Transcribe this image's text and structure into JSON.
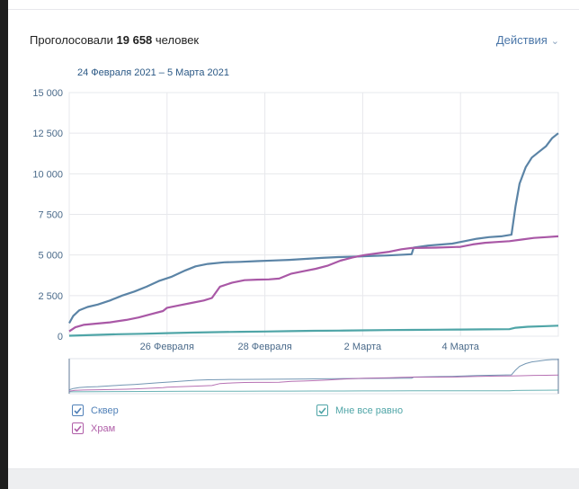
{
  "header": {
    "title_prefix": "Проголосовали",
    "count": "19 658",
    "title_suffix": "человек",
    "actions_label": "Действия"
  },
  "date_range": "24 Февраля 2021 – 5 Марта 2021",
  "legend": [
    {
      "name": "Сквер",
      "color": "#5181b8",
      "checked": true
    },
    {
      "name": "Храм",
      "color": "#b05ea8",
      "checked": true
    },
    {
      "name": "Мне все равно",
      "color": "#4fa5a7",
      "checked": true
    }
  ],
  "colors": {
    "skver": "#5b84a6",
    "hram": "#a958a6",
    "mne_vse_ravno": "#4fa5a7",
    "accent": "#4a76a8"
  },
  "chart_data": {
    "type": "line",
    "title": "",
    "xlabel": "",
    "ylabel": "",
    "x_range": [
      "2021-02-24T00:00",
      "2021-03-06T00:00"
    ],
    "ylim": [
      0,
      15000
    ],
    "y_ticks": [
      0,
      2500,
      5000,
      7500,
      10000,
      12500,
      15000
    ],
    "y_tick_labels": [
      "0",
      "2 500",
      "5 000",
      "7 500",
      "10 000",
      "12 500",
      "15 000"
    ],
    "x_ticks": [
      {
        "at": "2021-02-26T00:00",
        "label": "26 Февраля"
      },
      {
        "at": "2021-02-28T00:00",
        "label": "28 Февраля"
      },
      {
        "at": "2021-03-02T00:00",
        "label": "2 Марта"
      },
      {
        "at": "2021-03-04T00:00",
        "label": "4 Марта"
      }
    ],
    "grid": true,
    "legend_position": "bottom",
    "series": [
      {
        "name": "Сквер",
        "color": "#5b84a6",
        "points": [
          [
            "2021-02-24T00:00",
            800
          ],
          [
            "2021-02-24T02:00",
            1250
          ],
          [
            "2021-02-24T05:00",
            1600
          ],
          [
            "2021-02-24T09:00",
            1800
          ],
          [
            "2021-02-24T14:00",
            1950
          ],
          [
            "2021-02-24T20:00",
            2200
          ],
          [
            "2021-02-25T02:00",
            2500
          ],
          [
            "2021-02-25T08:00",
            2750
          ],
          [
            "2021-02-25T14:00",
            3050
          ],
          [
            "2021-02-25T20:00",
            3400
          ],
          [
            "2021-02-26T02:00",
            3650
          ],
          [
            "2021-02-26T09:00",
            4050
          ],
          [
            "2021-02-26T14:00",
            4300
          ],
          [
            "2021-02-26T20:00",
            4450
          ],
          [
            "2021-02-27T04:00",
            4550
          ],
          [
            "2021-02-27T12:00",
            4580
          ],
          [
            "2021-02-27T20:00",
            4620
          ],
          [
            "2021-02-28T04:00",
            4660
          ],
          [
            "2021-02-28T12:00",
            4700
          ],
          [
            "2021-02-28T20:00",
            4760
          ],
          [
            "2021-03-01T04:00",
            4820
          ],
          [
            "2021-03-01T12:00",
            4870
          ],
          [
            "2021-03-01T20:00",
            4900
          ],
          [
            "2021-03-02T04:00",
            4940
          ],
          [
            "2021-03-02T12:00",
            4970
          ],
          [
            "2021-03-02T20:00",
            5020
          ],
          [
            "2021-03-03T00:00",
            5050
          ],
          [
            "2021-03-03T01:00",
            5450
          ],
          [
            "2021-03-03T08:00",
            5580
          ],
          [
            "2021-03-03T14:00",
            5640
          ],
          [
            "2021-03-03T20:00",
            5700
          ],
          [
            "2021-03-04T02:00",
            5850
          ],
          [
            "2021-03-04T08:00",
            6000
          ],
          [
            "2021-03-04T14:00",
            6100
          ],
          [
            "2021-03-04T20:00",
            6150
          ],
          [
            "2021-03-05T01:00",
            6250
          ],
          [
            "2021-03-05T03:00",
            8000
          ],
          [
            "2021-03-05T05:00",
            9400
          ],
          [
            "2021-03-05T08:00",
            10400
          ],
          [
            "2021-03-05T11:00",
            11000
          ],
          [
            "2021-03-05T14:00",
            11300
          ],
          [
            "2021-03-05T18:00",
            11700
          ],
          [
            "2021-03-05T21:00",
            12200
          ],
          [
            "2021-03-06T00:00",
            12500
          ]
        ]
      },
      {
        "name": "Храм",
        "color": "#a958a6",
        "points": [
          [
            "2021-02-24T00:00",
            300
          ],
          [
            "2021-02-24T03:00",
            550
          ],
          [
            "2021-02-24T07:00",
            700
          ],
          [
            "2021-02-24T14:00",
            780
          ],
          [
            "2021-02-24T20:00",
            850
          ],
          [
            "2021-02-25T04:00",
            1000
          ],
          [
            "2021-02-25T10:00",
            1150
          ],
          [
            "2021-02-25T16:00",
            1350
          ],
          [
            "2021-02-25T22:00",
            1550
          ],
          [
            "2021-02-26T00:00",
            1750
          ],
          [
            "2021-02-26T06:00",
            1900
          ],
          [
            "2021-02-26T12:00",
            2050
          ],
          [
            "2021-02-26T18:00",
            2200
          ],
          [
            "2021-02-26T22:00",
            2350
          ],
          [
            "2021-02-27T02:00",
            3050
          ],
          [
            "2021-02-27T08:00",
            3300
          ],
          [
            "2021-02-27T14:00",
            3450
          ],
          [
            "2021-02-27T20:00",
            3480
          ],
          [
            "2021-02-28T02:00",
            3500
          ],
          [
            "2021-02-28T07:00",
            3550
          ],
          [
            "2021-02-28T13:00",
            3850
          ],
          [
            "2021-02-28T19:00",
            4000
          ],
          [
            "2021-03-01T01:00",
            4150
          ],
          [
            "2021-03-01T07:00",
            4350
          ],
          [
            "2021-03-01T13:00",
            4650
          ],
          [
            "2021-03-01T19:00",
            4850
          ],
          [
            "2021-03-02T01:00",
            5000
          ],
          [
            "2021-03-02T07:00",
            5100
          ],
          [
            "2021-03-02T13:00",
            5200
          ],
          [
            "2021-03-02T19:00",
            5350
          ],
          [
            "2021-03-03T00:00",
            5430
          ],
          [
            "2021-03-03T12:00",
            5450
          ],
          [
            "2021-03-04T00:00",
            5500
          ],
          [
            "2021-03-04T06:00",
            5650
          ],
          [
            "2021-03-04T12:00",
            5750
          ],
          [
            "2021-03-04T18:00",
            5800
          ],
          [
            "2021-03-05T00:00",
            5850
          ],
          [
            "2021-03-05T06:00",
            5950
          ],
          [
            "2021-03-05T12:00",
            6050
          ],
          [
            "2021-03-05T18:00",
            6100
          ],
          [
            "2021-03-06T00:00",
            6150
          ]
        ]
      },
      {
        "name": "Мне все равно",
        "color": "#4fa5a7",
        "points": [
          [
            "2021-02-24T00:00",
            30
          ],
          [
            "2021-02-24T12:00",
            80
          ],
          [
            "2021-02-25T00:00",
            120
          ],
          [
            "2021-02-25T12:00",
            150
          ],
          [
            "2021-02-26T00:00",
            190
          ],
          [
            "2021-02-26T12:00",
            220
          ],
          [
            "2021-02-27T00:00",
            250
          ],
          [
            "2021-02-27T12:00",
            270
          ],
          [
            "2021-02-28T00:00",
            290
          ],
          [
            "2021-02-28T12:00",
            310
          ],
          [
            "2021-03-01T00:00",
            330
          ],
          [
            "2021-03-01T12:00",
            345
          ],
          [
            "2021-03-02T00:00",
            360
          ],
          [
            "2021-03-02T12:00",
            375
          ],
          [
            "2021-03-03T00:00",
            390
          ],
          [
            "2021-03-03T12:00",
            400
          ],
          [
            "2021-03-04T00:00",
            410
          ],
          [
            "2021-03-04T12:00",
            420
          ],
          [
            "2021-03-05T00:00",
            430
          ],
          [
            "2021-03-05T03:00",
            520
          ],
          [
            "2021-03-05T09:00",
            580
          ],
          [
            "2021-03-05T18:00",
            620
          ],
          [
            "2021-03-06T00:00",
            650
          ]
        ]
      }
    ]
  }
}
